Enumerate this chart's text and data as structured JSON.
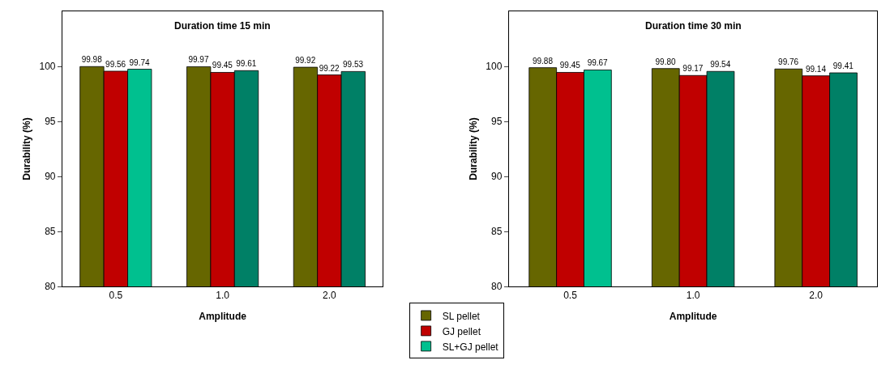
{
  "chart_data": [
    {
      "type": "bar",
      "title": "Duration time 15 min",
      "xlabel": "Amplitude",
      "ylabel": "Durability (%)",
      "categories": [
        "0.5",
        "1.0",
        "2.0"
      ],
      "ylim": [
        80,
        105
      ],
      "yticks": [
        80,
        85,
        90,
        95,
        100
      ],
      "legend": "bottom right",
      "series": [
        {
          "name": "SL pellet",
          "color": "#666600",
          "values": [
            99.98,
            99.97,
            99.92
          ],
          "value_labels": [
            "99.98",
            "99.97",
            "99.92"
          ]
        },
        {
          "name": "GJ pellet",
          "color": "#c00000",
          "values": [
            99.56,
            99.45,
            99.22
          ],
          "value_labels": [
            "99.56",
            "99.45",
            "99.22"
          ]
        },
        {
          "name": "SL+GJ pellet",
          "color": "#008066",
          "colors": [
            "#00c08f",
            "#008066",
            "#008066"
          ],
          "values": [
            99.74,
            99.61,
            99.53
          ],
          "value_labels": [
            "99.74",
            "99.61",
            "99.53"
          ]
        }
      ]
    },
    {
      "type": "bar",
      "title": "Duration time 30 min",
      "xlabel": "Amplitude",
      "ylabel": "Durability (%)",
      "categories": [
        "0.5",
        "1.0",
        "2.0"
      ],
      "ylim": [
        80,
        105
      ],
      "yticks": [
        80,
        85,
        90,
        95,
        100
      ],
      "series": [
        {
          "color": "#666600",
          "values": [
            99.88,
            99.8,
            99.76
          ],
          "value_labels": [
            "99.88",
            "99.80",
            "99.76"
          ]
        },
        {
          "color": "#c00000",
          "values": [
            99.45,
            99.17,
            99.14
          ],
          "value_labels": [
            "99.45",
            "99.17",
            "99.14"
          ]
        },
        {
          "color": "#008066",
          "colors": [
            "#00c08f",
            "#008066",
            "#008066"
          ],
          "values": [
            99.67,
            99.54,
            99.41
          ],
          "value_labels": [
            "99.67",
            "99.54",
            "99.41"
          ]
        }
      ]
    }
  ]
}
